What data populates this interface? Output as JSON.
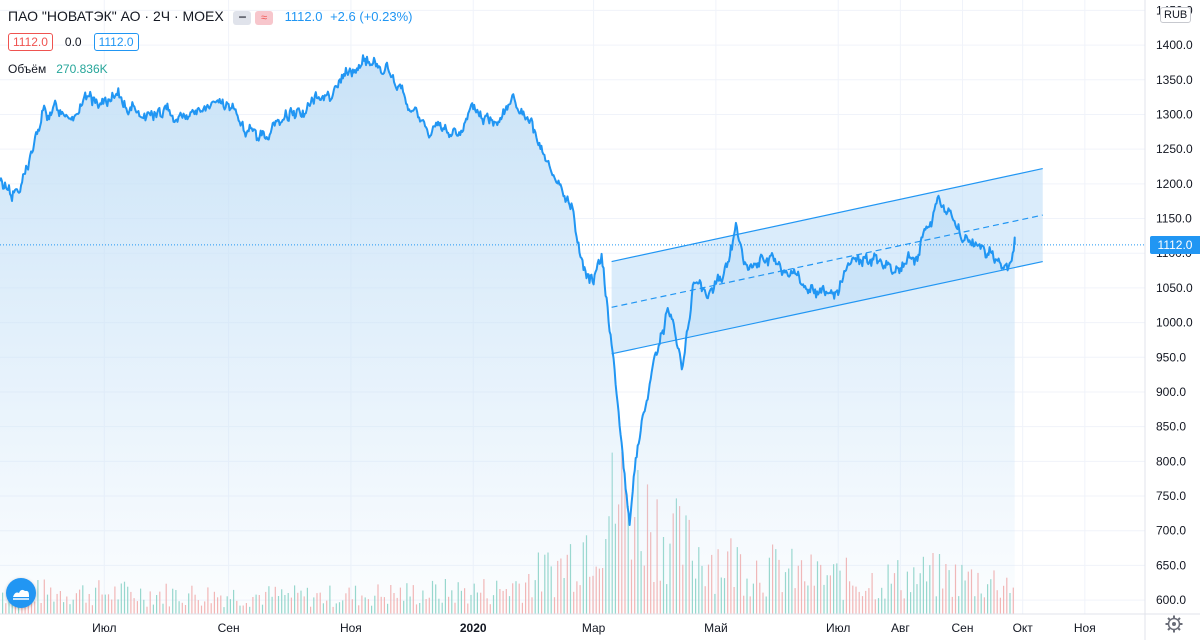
{
  "header": {
    "title": "ПАО \"НОВАТЭК\" АО · 2Ч · MOEX",
    "last_price": "1112.0",
    "change": "+2.6 (+0.23%)"
  },
  "legend": {
    "bid": "1112.0",
    "spread": "0.0",
    "ask": "1112.0",
    "volume_label": "Объём",
    "volume_value": "270.836K"
  },
  "currency": "RUB",
  "price_tag": "1112.0",
  "colors": {
    "line": "#2196f3",
    "area": "#c6e1f7",
    "channel_fill": "#bcdcf7",
    "volume_up": "#7fcfbf",
    "volume_down": "#f3a5a2",
    "down": "#ef5350"
  },
  "icons": [
    "minus-icon",
    "approx-icon",
    "tradingview-logo-icon",
    "gear-icon"
  ],
  "chart_data": [
    {
      "type": "area",
      "series": [
        {
          "name": "",
          "x": [
            "2019-05-10",
            "2019-05-20",
            "2019-06-01",
            "2019-06-15",
            "2019-07-01",
            "2019-07-15",
            "2019-08-01",
            "2019-08-15",
            "2019-09-01",
            "2019-09-15",
            "2019-10-01",
            "2019-10-15",
            "2019-11-01",
            "2019-11-10",
            "2019-11-20",
            "2019-12-01",
            "2019-12-10",
            "2019-12-20",
            "2020-01-01",
            "2020-01-10",
            "2020-01-20",
            "2020-02-01",
            "2020-02-10",
            "2020-02-20",
            "2020-02-25",
            "2020-03-01",
            "2020-03-05",
            "2020-03-09",
            "2020-03-12",
            "2020-03-16",
            "2020-03-19",
            "2020-03-23",
            "2020-03-27",
            "2020-04-01",
            "2020-04-07",
            "2020-04-14",
            "2020-04-20",
            "2020-04-27",
            "2020-05-04",
            "2020-05-11",
            "2020-05-14",
            "2020-05-18",
            "2020-05-25",
            "2020-06-01",
            "2020-06-10",
            "2020-06-20",
            "2020-07-01",
            "2020-07-10",
            "2020-07-20",
            "2020-08-01",
            "2020-08-10",
            "2020-08-20",
            "2020-08-27",
            "2020-09-01",
            "2020-09-10",
            "2020-09-15",
            "2020-09-20",
            "2020-09-25",
            "2020-09-27"
          ],
          "y": [
            1200,
            1190,
            1300,
            1310,
            1320,
            1310,
            1300,
            1305,
            1310,
            1260,
            1300,
            1320,
            1360,
            1380,
            1360,
            1300,
            1280,
            1270,
            1300,
            1290,
            1330,
            1260,
            1200,
            1160,
            1080,
            1060,
            1110,
            1000,
            920,
            800,
            720,
            830,
            880,
            960,
            1020,
            940,
            1060,
            1040,
            1060,
            1140,
            1100,
            1070,
            1090,
            1080,
            1060,
            1040,
            1050,
            1080,
            1090,
            1080,
            1110,
            1175,
            1150,
            1120,
            1110,
            1100,
            1080,
            1075,
            1112
          ]
        }
      ],
      "channel": {
        "start": "2020-03-10",
        "end": "2020-10-11",
        "upper_start": 1088,
        "upper_end": 1222,
        "mid_start": 1022,
        "mid_end": 1155,
        "lower_start": 955,
        "lower_end": 1088
      },
      "x_ticks": [
        "Июл",
        "Сен",
        "Ноя",
        "2020",
        "Мар",
        "Май",
        "Июл",
        "Авг",
        "Сен",
        "Окт",
        "Ноя"
      ],
      "x_tick_dates": [
        "2019-07-01",
        "2019-09-01",
        "2019-11-01",
        "2020-01-01",
        "2020-03-01",
        "2020-05-01",
        "2020-07-01",
        "2020-08-01",
        "2020-09-01",
        "2020-10-01",
        "2020-11-01"
      ],
      "y_ticks": [
        "1450.0",
        "1400.0",
        "1350.0",
        "1300.0",
        "1250.0",
        "1200.0",
        "1150.0",
        "1100.0",
        "1050.0",
        "1000.0",
        "950.0",
        "900.0",
        "850.0",
        "800.0",
        "750.0",
        "700.0",
        "650.0",
        "600.0"
      ],
      "y_tick_values": [
        1450,
        1400,
        1350,
        1300,
        1250,
        1200,
        1150,
        1100,
        1050,
        1000,
        950,
        900,
        850,
        800,
        750,
        700,
        650,
        600
      ],
      "ylim": [
        580,
        1465
      ],
      "x_range": [
        "2019-05-10",
        "2020-12-01"
      ],
      "grid": true,
      "volume": {
        "name": "Объём",
        "x": [
          "2019-06",
          "2019-08",
          "2019-10",
          "2019-12",
          "2020-01",
          "2020-02",
          "2020-03",
          "2020-04",
          "2020-05",
          "2020-06",
          "2020-07",
          "2020-08",
          "2020-09"
        ],
        "y": [
          20,
          18,
          16,
          20,
          22,
          45,
          110,
          60,
          45,
          35,
          30,
          35,
          30
        ],
        "unit": "K"
      }
    }
  ]
}
